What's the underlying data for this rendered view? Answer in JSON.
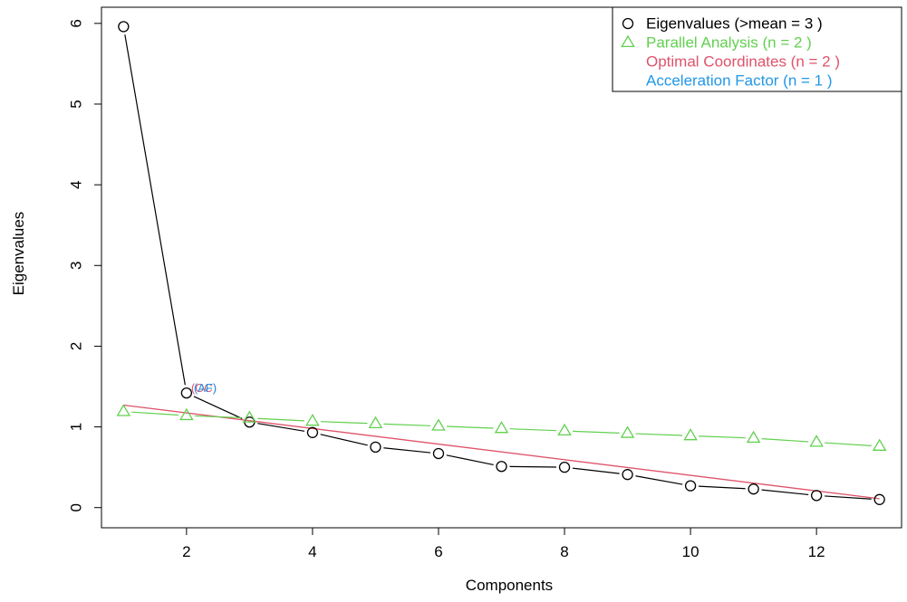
{
  "chart_data": {
    "type": "scatter",
    "xlabel": "Components",
    "ylabel": "Eigenvalues",
    "xlim": [
      0.65,
      13.35
    ],
    "ylim": [
      -0.25,
      6.2
    ],
    "x_ticks": [
      2,
      4,
      6,
      8,
      10,
      12
    ],
    "y_ticks": [
      0,
      1,
      2,
      3,
      4,
      5,
      6
    ],
    "x": [
      1,
      2,
      3,
      4,
      5,
      6,
      7,
      8,
      9,
      10,
      11,
      12,
      13
    ],
    "series": [
      {
        "name": "Eigenvalues",
        "marker": "circle",
        "color": "#000000",
        "lines": true,
        "values": [
          5.96,
          1.42,
          1.06,
          0.93,
          0.75,
          0.67,
          0.51,
          0.5,
          0.41,
          0.27,
          0.23,
          0.15,
          0.1
        ]
      },
      {
        "name": "Parallel Analysis",
        "marker": "triangle",
        "color": "#61D04F",
        "lines": true,
        "values": [
          1.19,
          1.14,
          1.11,
          1.07,
          1.04,
          1.01,
          0.98,
          0.95,
          0.92,
          0.89,
          0.86,
          0.81,
          0.76
        ]
      }
    ],
    "optimal_coordinates_line": {
      "color": "#DF536B",
      "from": [
        1,
        1.27
      ],
      "to": [
        13,
        0.11
      ]
    },
    "annotations": [
      {
        "text": "(OC)",
        "x": 2,
        "y": 1.42,
        "color": "#DF536B"
      },
      {
        "text": "(AF)",
        "x": 2,
        "y": 1.42,
        "color": "#2297E6"
      }
    ],
    "legend": {
      "position": "top-right",
      "entries": [
        {
          "text": "Eigenvalues (>mean  =  3 )",
          "color": "#000000",
          "marker": "circle"
        },
        {
          "text": "Parallel Analysis (n =  2 )",
          "color": "#61D04F",
          "marker": "triangle"
        },
        {
          "text": "Optimal Coordinates (n =  2 )",
          "color": "#DF536B",
          "marker": "none"
        },
        {
          "text": "Acceleration Factor (n =  1 )",
          "color": "#2297E6",
          "marker": "none"
        }
      ]
    }
  }
}
